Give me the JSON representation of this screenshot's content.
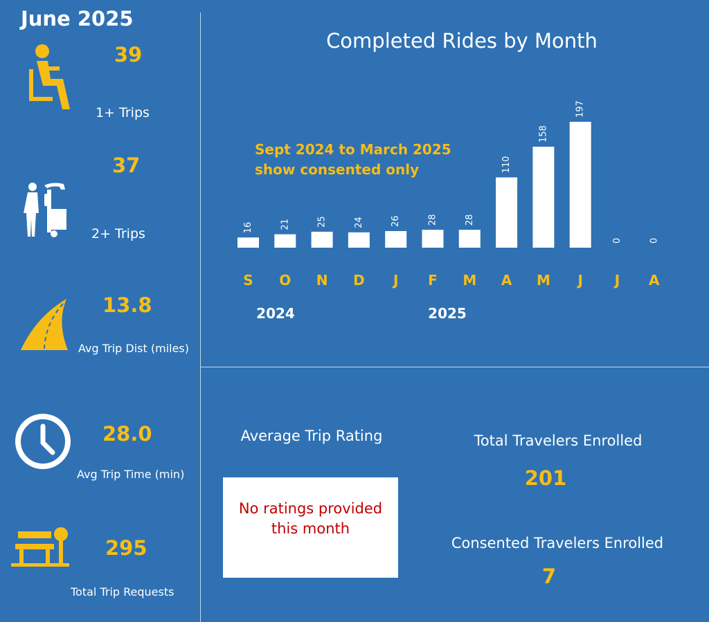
{
  "header": {
    "month": "June 2025"
  },
  "stats": [
    {
      "value": "39",
      "label": "1+ Trips",
      "icon": "seated-person-icon"
    },
    {
      "value": "37",
      "label": "2+ Trips",
      "icon": "person-with-shuttle-icon"
    },
    {
      "value": "13.8",
      "label": "Avg Trip Dist (miles)",
      "icon": "road-icon"
    },
    {
      "value": "28.0",
      "label": "Avg Trip Time (min)",
      "icon": "clock-icon"
    },
    {
      "value": "295",
      "label": "Total Trip Requests",
      "icon": "bus-stop-bench-icon"
    }
  ],
  "chart_data": {
    "type": "bar",
    "title": "Completed Rides by Month",
    "categories": [
      "S",
      "O",
      "N",
      "D",
      "J",
      "F",
      "M",
      "A",
      "M",
      "J",
      "J",
      "A"
    ],
    "values": [
      16,
      21,
      25,
      24,
      26,
      28,
      28,
      110,
      158,
      197,
      0,
      0
    ],
    "year_labels": [
      "2024",
      "2025"
    ],
    "annotation": [
      "Sept 2024 to March 2025",
      "show consented only"
    ],
    "ylim": [
      0,
      197
    ],
    "grid": false,
    "colors": {
      "bars": "#ffffff",
      "tick_labels": "#f7bd16",
      "annotation": "#f7bd16"
    }
  },
  "rating": {
    "title": "Average Trip Rating",
    "message_line1": "No ratings provided",
    "message_line2": "this month"
  },
  "enrollment": {
    "total_label": "Total Travelers Enrolled",
    "total_value": "201",
    "consented_label": "Consented Travelers Enrolled",
    "consented_value": "7"
  },
  "colors": {
    "background": "#2f71b3",
    "accent": "#f7bd16",
    "alert": "#c00000"
  }
}
